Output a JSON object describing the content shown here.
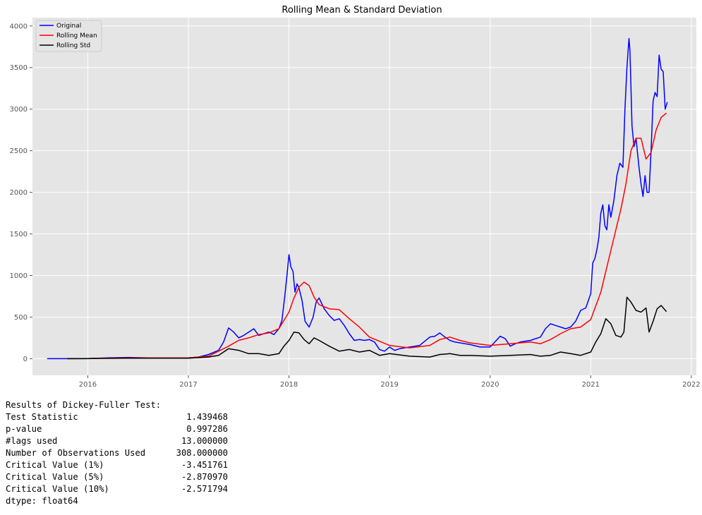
{
  "chart_data": {
    "type": "line",
    "title": "Rolling Mean & Standard Deviation",
    "xlabel": "",
    "ylabel": "",
    "xlim": [
      2015.45,
      2022.05
    ],
    "ylim": [
      -200,
      4100
    ],
    "grid": true,
    "legend_position": "top-left",
    "x_ticks": [
      2016,
      2017,
      2018,
      2019,
      2020,
      2021,
      2022
    ],
    "x_tick_labels": [
      "2016",
      "2017",
      "2018",
      "2019",
      "2020",
      "2021",
      "2022"
    ],
    "y_ticks": [
      0,
      500,
      1000,
      1500,
      2000,
      2500,
      3000,
      3500,
      4000
    ],
    "y_tick_labels": [
      "0",
      "500",
      "1000",
      "1500",
      "2000",
      "2500",
      "3000",
      "3500",
      "4000"
    ],
    "series": [
      {
        "name": "Original",
        "color": "#0000ff",
        "x": [
          2015.6,
          2015.8,
          2016.0,
          2016.2,
          2016.4,
          2016.6,
          2016.8,
          2017.0,
          2017.1,
          2017.2,
          2017.3,
          2017.35,
          2017.4,
          2017.45,
          2017.5,
          2017.55,
          2017.6,
          2017.65,
          2017.7,
          2017.75,
          2017.8,
          2017.85,
          2017.9,
          2017.93,
          2017.96,
          2017.98,
          2018.0,
          2018.02,
          2018.04,
          2018.06,
          2018.08,
          2018.1,
          2018.13,
          2018.16,
          2018.2,
          2018.24,
          2018.27,
          2018.3,
          2018.35,
          2018.4,
          2018.45,
          2018.5,
          2018.55,
          2018.6,
          2018.65,
          2018.7,
          2018.75,
          2018.8,
          2018.85,
          2018.9,
          2018.95,
          2019.0,
          2019.05,
          2019.1,
          2019.2,
          2019.3,
          2019.4,
          2019.45,
          2019.5,
          2019.55,
          2019.6,
          2019.65,
          2019.7,
          2019.8,
          2019.9,
          2020.0,
          2020.1,
          2020.15,
          2020.2,
          2020.25,
          2020.3,
          2020.4,
          2020.5,
          2020.55,
          2020.6,
          2020.65,
          2020.7,
          2020.75,
          2020.8,
          2020.85,
          2020.9,
          2020.95,
          2021.0,
          2021.02,
          2021.04,
          2021.06,
          2021.08,
          2021.1,
          2021.12,
          2021.14,
          2021.16,
          2021.18,
          2021.2,
          2021.23,
          2021.26,
          2021.29,
          2021.32,
          2021.34,
          2021.36,
          2021.38,
          2021.39,
          2021.41,
          2021.43,
          2021.45,
          2021.48,
          2021.5,
          2021.52,
          2021.54,
          2021.56,
          2021.58,
          2021.6,
          2021.62,
          2021.64,
          2021.66,
          2021.68,
          2021.7,
          2021.72,
          2021.74,
          2021.76
        ],
        "values": [
          0,
          0,
          0,
          10,
          15,
          10,
          10,
          10,
          20,
          50,
          100,
          200,
          370,
          320,
          250,
          280,
          320,
          360,
          280,
          300,
          320,
          290,
          360,
          460,
          770,
          1000,
          1250,
          1100,
          1050,
          800,
          900,
          850,
          700,
          450,
          380,
          500,
          680,
          730,
          600,
          520,
          460,
          480,
          400,
          300,
          220,
          230,
          220,
          230,
          200,
          110,
          90,
          140,
          100,
          120,
          140,
          160,
          260,
          270,
          310,
          260,
          220,
          200,
          190,
          170,
          140,
          140,
          270,
          240,
          150,
          180,
          200,
          220,
          260,
          360,
          420,
          400,
          380,
          360,
          380,
          450,
          580,
          610,
          780,
          1150,
          1200,
          1300,
          1450,
          1750,
          1850,
          1600,
          1550,
          1850,
          1700,
          1900,
          2200,
          2350,
          2300,
          3000,
          3500,
          3850,
          3700,
          2800,
          2550,
          2650,
          2300,
          2100,
          1950,
          2200,
          2000,
          2000,
          2500,
          3100,
          3200,
          3150,
          3650,
          3480,
          3450,
          3000,
          3080
        ]
      },
      {
        "name": "Rolling Mean",
        "color": "#ff0000",
        "x": [
          2015.8,
          2016.0,
          2016.4,
          2016.8,
          2017.0,
          2017.2,
          2017.4,
          2017.5,
          2017.6,
          2017.7,
          2017.8,
          2017.9,
          2018.0,
          2018.05,
          2018.1,
          2018.15,
          2018.2,
          2018.25,
          2018.3,
          2018.4,
          2018.5,
          2018.6,
          2018.7,
          2018.8,
          2018.9,
          2019.0,
          2019.2,
          2019.4,
          2019.5,
          2019.6,
          2019.7,
          2019.8,
          2020.0,
          2020.2,
          2020.4,
          2020.5,
          2020.6,
          2020.7,
          2020.8,
          2020.9,
          2021.0,
          2021.1,
          2021.2,
          2021.3,
          2021.35,
          2021.4,
          2021.45,
          2021.5,
          2021.55,
          2021.6,
          2021.65,
          2021.7,
          2021.75
        ],
        "values": [
          0,
          2,
          10,
          10,
          10,
          30,
          150,
          220,
          250,
          290,
          310,
          360,
          560,
          730,
          860,
          920,
          880,
          740,
          650,
          600,
          590,
          480,
          380,
          260,
          210,
          160,
          130,
          160,
          230,
          260,
          220,
          190,
          160,
          180,
          200,
          180,
          230,
          300,
          360,
          380,
          470,
          800,
          1300,
          1800,
          2100,
          2500,
          2650,
          2650,
          2400,
          2480,
          2750,
          2900,
          2950
        ]
      },
      {
        "name": "Rolling Std",
        "color": "#000000",
        "x": [
          2015.8,
          2016.0,
          2016.4,
          2016.8,
          2017.0,
          2017.2,
          2017.3,
          2017.4,
          2017.5,
          2017.6,
          2017.7,
          2017.8,
          2017.9,
          2017.95,
          2018.0,
          2018.05,
          2018.1,
          2018.15,
          2018.2,
          2018.25,
          2018.3,
          2018.4,
          2018.5,
          2018.6,
          2018.7,
          2018.8,
          2018.9,
          2019.0,
          2019.2,
          2019.4,
          2019.5,
          2019.6,
          2019.7,
          2019.8,
          2020.0,
          2020.2,
          2020.4,
          2020.5,
          2020.6,
          2020.7,
          2020.8,
          2020.9,
          2021.0,
          2021.05,
          2021.1,
          2021.15,
          2021.2,
          2021.25,
          2021.3,
          2021.33,
          2021.36,
          2021.4,
          2021.45,
          2021.5,
          2021.55,
          2021.58,
          2021.62,
          2021.66,
          2021.7,
          2021.75
        ],
        "values": [
          0,
          2,
          5,
          5,
          5,
          20,
          40,
          120,
          100,
          60,
          60,
          40,
          60,
          150,
          220,
          320,
          310,
          230,
          180,
          250,
          220,
          150,
          90,
          110,
          80,
          100,
          40,
          60,
          30,
          20,
          50,
          60,
          40,
          40,
          30,
          40,
          50,
          30,
          40,
          80,
          60,
          40,
          80,
          200,
          300,
          480,
          420,
          280,
          260,
          320,
          740,
          680,
          580,
          560,
          610,
          320,
          450,
          600,
          640,
          570
        ]
      }
    ]
  },
  "adf": {
    "heading": "Results of Dickey-Fuller Test:",
    "rows": [
      {
        "label": "Test Statistic",
        "value": "1.439468"
      },
      {
        "label": "p-value",
        "value": "0.997286"
      },
      {
        "label": "#lags used",
        "value": "13.000000"
      },
      {
        "label": "Number of Observations Used",
        "value": "308.000000"
      },
      {
        "label": "Critical Value (1%)",
        "value": "-3.451761"
      },
      {
        "label": "Critical Value (5%)",
        "value": "-2.870970"
      },
      {
        "label": "Critical Value (10%)",
        "value": "-2.571794"
      }
    ],
    "footer": "dtype: float64"
  }
}
